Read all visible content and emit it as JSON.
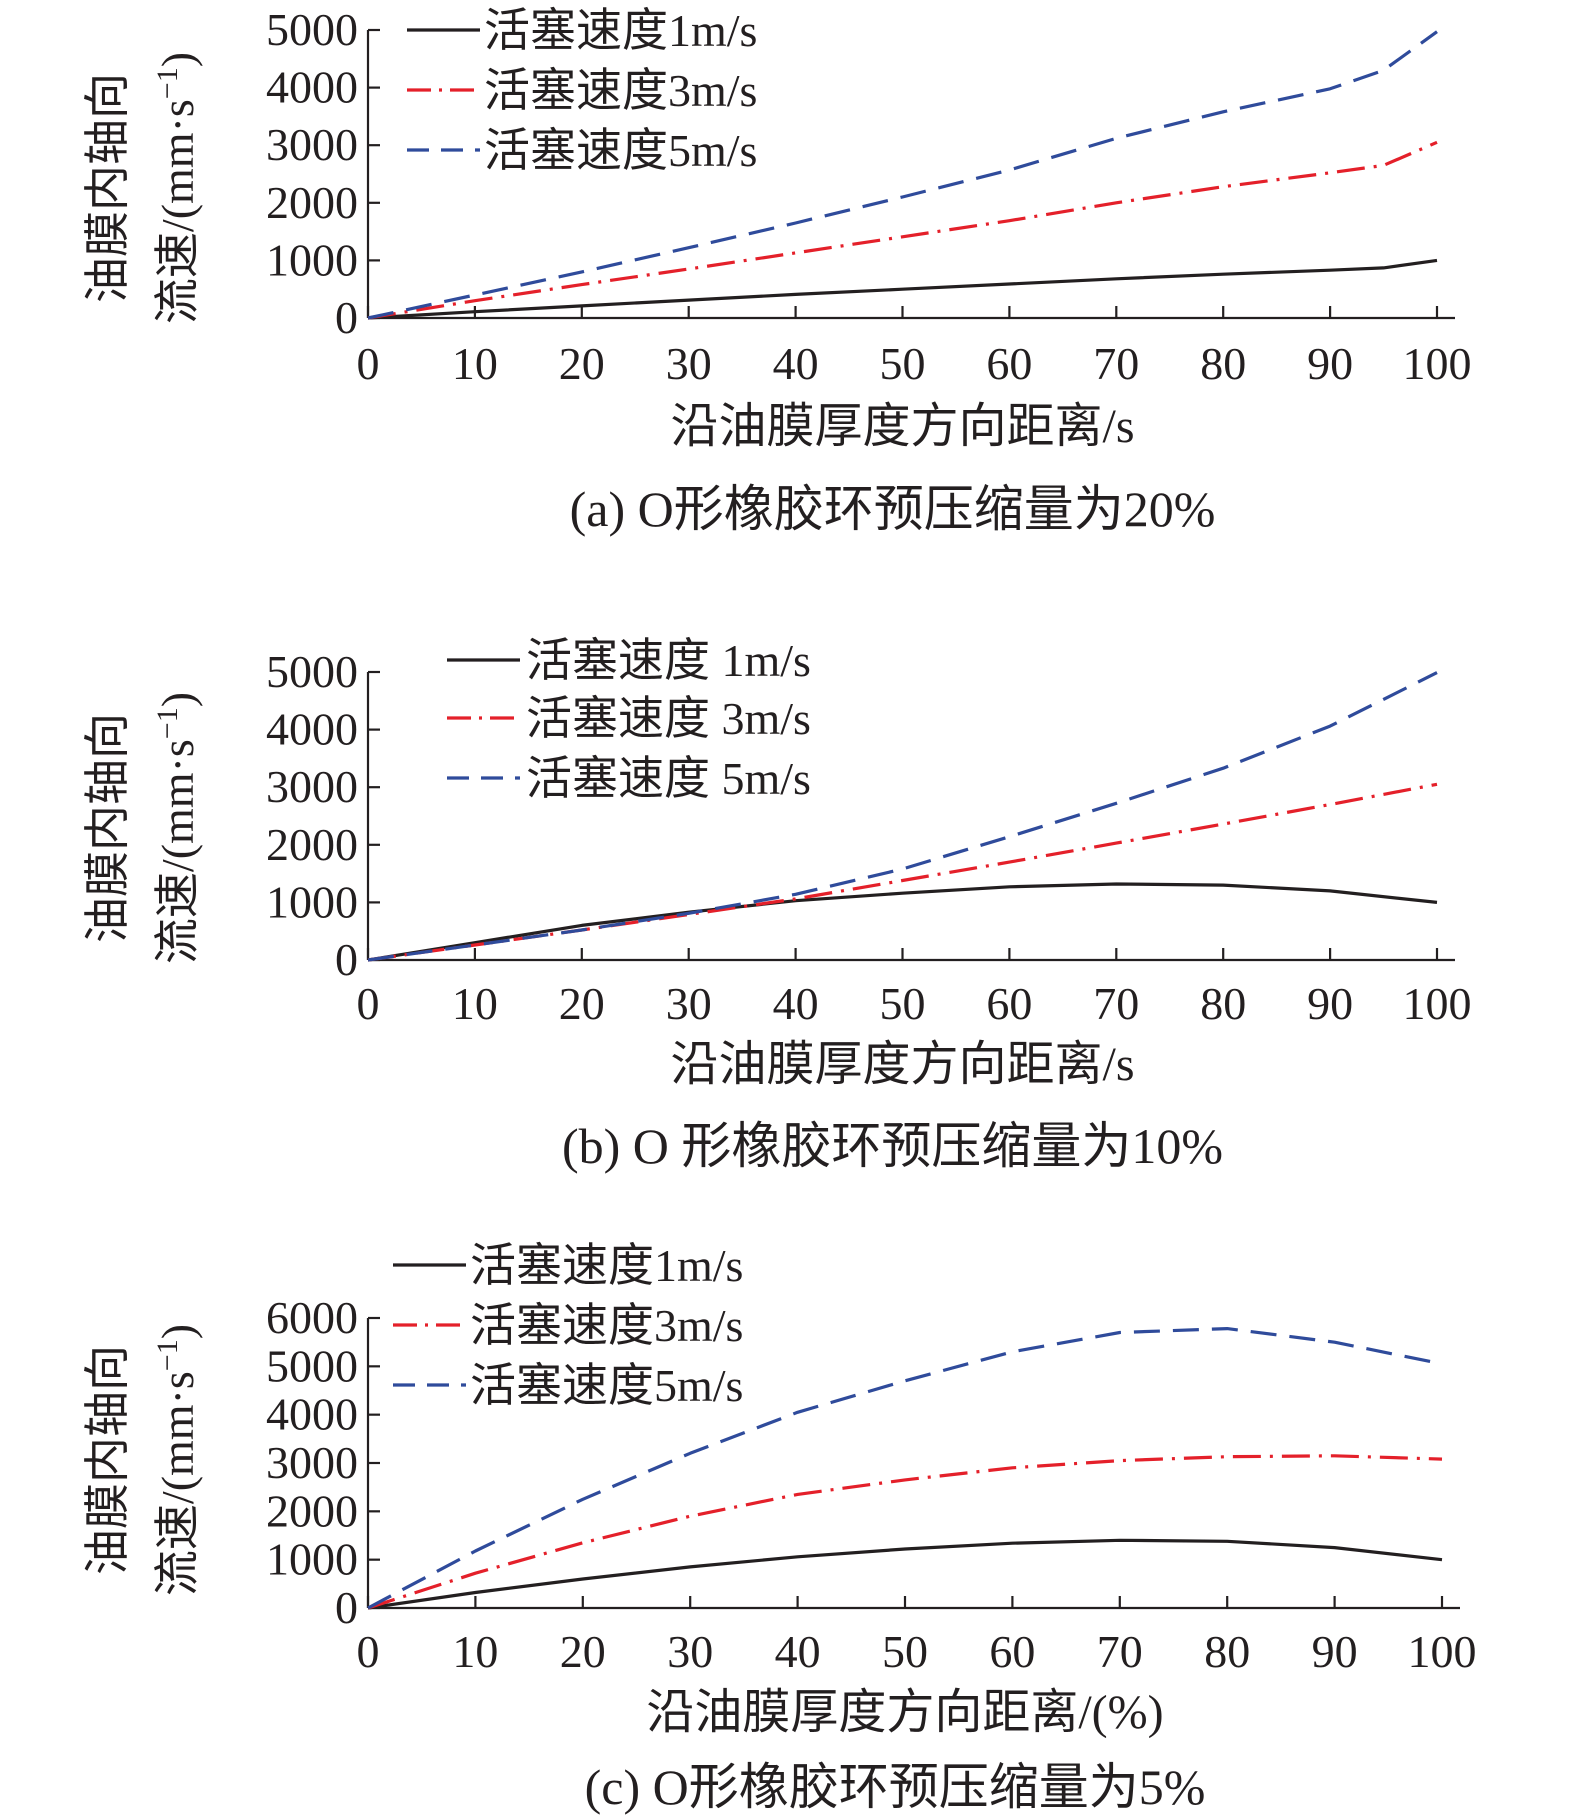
{
  "figure": {
    "panels": [
      {
        "id": "a",
        "caption": "(a) O形橡胶环预压缩量为20%"
      },
      {
        "id": "b",
        "caption": "(b) O 形橡胶环预压缩量为10%"
      },
      {
        "id": "c",
        "caption": "(c) O形橡胶环预压缩量为5%"
      }
    ]
  },
  "colors": {
    "series_1": "#231f20",
    "series_3": "#e4202a",
    "series_5": "#2f4b9b",
    "axis": "#231f20"
  },
  "chart_data": [
    {
      "type": "line",
      "caption": "(a) O形橡胶环预压缩量为20%",
      "xlabel": "沿油膜厚度方向距离/s",
      "ylabel_line1": "油膜内轴向",
      "ylabel_line2": "流速/(mm·s",
      "ylabel_sup": "−1",
      "ylabel_close": ")",
      "xlim": [
        0,
        100
      ],
      "ylim": [
        0,
        5000
      ],
      "xticks": [
        0,
        10,
        20,
        30,
        40,
        50,
        60,
        70,
        80,
        90,
        100
      ],
      "yticks": [
        0,
        1000,
        2000,
        3000,
        4000,
        5000
      ],
      "legend_position": "top-left",
      "x": [
        0,
        10,
        20,
        30,
        40,
        50,
        60,
        70,
        80,
        90,
        95,
        100
      ],
      "series": [
        {
          "name": "活塞速度1m/s",
          "style": "solid",
          "color": "#231f20",
          "values": [
            0,
            110,
            210,
            310,
            410,
            500,
            590,
            680,
            760,
            830,
            870,
            1000
          ]
        },
        {
          "name": "活塞速度3m/s",
          "style": "dashdot",
          "color": "#e4202a",
          "values": [
            0,
            300,
            580,
            850,
            1130,
            1410,
            1690,
            2000,
            2280,
            2520,
            2650,
            3050
          ]
        },
        {
          "name": "活塞速度5m/s",
          "style": "dashed",
          "color": "#2f4b9b",
          "values": [
            0,
            400,
            800,
            1220,
            1650,
            2100,
            2570,
            3120,
            3580,
            3980,
            4300,
            4970
          ]
        }
      ]
    },
    {
      "type": "line",
      "caption": "(b) O 形橡胶环预压缩量为10%",
      "xlabel": "沿油膜厚度方向距离/s",
      "ylabel_line1": "油膜内轴向",
      "ylabel_line2": "流速/(mm·s",
      "ylabel_sup": "−1",
      "ylabel_close": ")",
      "xlim": [
        0,
        100
      ],
      "ylim": [
        0,
        5000
      ],
      "xticks": [
        0,
        10,
        20,
        30,
        40,
        50,
        60,
        70,
        80,
        90,
        100
      ],
      "yticks": [
        0,
        1000,
        2000,
        3000,
        4000,
        5000
      ],
      "legend_position": "top-left",
      "x": [
        0,
        10,
        20,
        30,
        40,
        50,
        60,
        70,
        80,
        90,
        100
      ],
      "series": [
        {
          "name": "活塞速度 1m/s",
          "style": "solid",
          "color": "#231f20",
          "values": [
            0,
            300,
            600,
            830,
            1030,
            1160,
            1270,
            1320,
            1300,
            1200,
            1000
          ]
        },
        {
          "name": "活塞速度 3m/s",
          "style": "dashdot",
          "color": "#e4202a",
          "values": [
            0,
            260,
            520,
            790,
            1060,
            1380,
            1700,
            2030,
            2360,
            2700,
            3050
          ]
        },
        {
          "name": "活塞速度 5m/s",
          "style": "dashed",
          "color": "#2f4b9b",
          "values": [
            0,
            260,
            520,
            810,
            1140,
            1580,
            2140,
            2720,
            3330,
            4060,
            4990
          ]
        }
      ]
    },
    {
      "type": "line",
      "caption": "(c) O形橡胶环预压缩量为5%",
      "xlabel": "沿油膜厚度方向距离/(%)",
      "ylabel_line1": "油膜内轴向",
      "ylabel_line2": "流速/(mm·s",
      "ylabel_sup": "−1",
      "ylabel_close": ")",
      "xlim": [
        0,
        100
      ],
      "ylim": [
        0,
        6000
      ],
      "xticks": [
        0,
        10,
        20,
        30,
        40,
        50,
        60,
        70,
        80,
        90,
        100
      ],
      "yticks": [
        0,
        1000,
        2000,
        3000,
        4000,
        5000,
        6000
      ],
      "legend_position": "top-left",
      "x": [
        0,
        10,
        20,
        30,
        40,
        50,
        60,
        70,
        80,
        90,
        100
      ],
      "series": [
        {
          "name": "活塞速度1m/s",
          "style": "solid",
          "color": "#231f20",
          "values": [
            0,
            320,
            600,
            850,
            1060,
            1220,
            1340,
            1400,
            1380,
            1250,
            1000
          ]
        },
        {
          "name": "活塞速度3m/s",
          "style": "dashdot",
          "color": "#e4202a",
          "values": [
            0,
            720,
            1350,
            1900,
            2350,
            2650,
            2900,
            3050,
            3130,
            3150,
            3080
          ]
        },
        {
          "name": "活塞速度5m/s",
          "style": "dashed",
          "color": "#2f4b9b",
          "values": [
            0,
            1180,
            2250,
            3200,
            4050,
            4700,
            5300,
            5700,
            5780,
            5500,
            5050
          ]
        }
      ]
    }
  ]
}
